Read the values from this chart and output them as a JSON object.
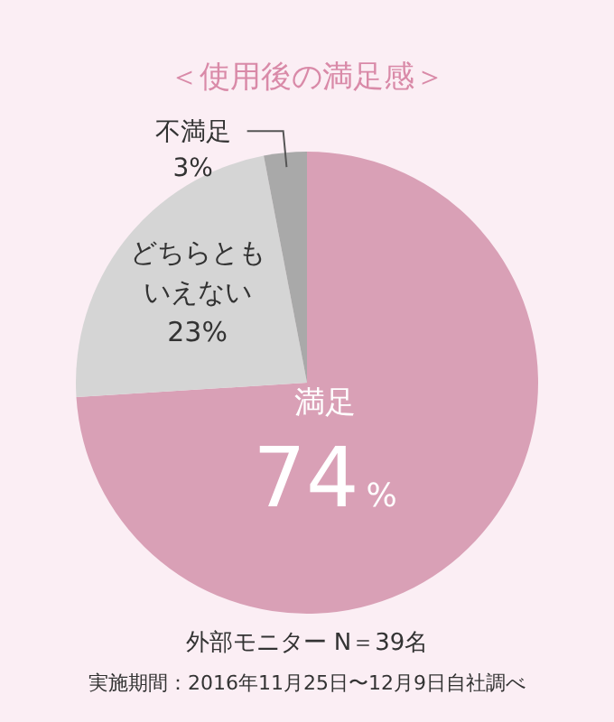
{
  "chart_data": {
    "type": "pie",
    "title": "＜使用後の満足感＞",
    "categories": [
      "満足",
      "どちらともいえない",
      "不満足"
    ],
    "values": [
      74,
      23,
      3
    ],
    "colors": [
      "#d9a0b6",
      "#d5d5d5",
      "#a9a9a9"
    ],
    "value_labels": [
      "74%",
      "23%",
      "3%"
    ],
    "annotations": [
      "外部モニター N＝39名",
      "実施期間：2016年11月25日〜12月9日自社調べ"
    ]
  }
}
